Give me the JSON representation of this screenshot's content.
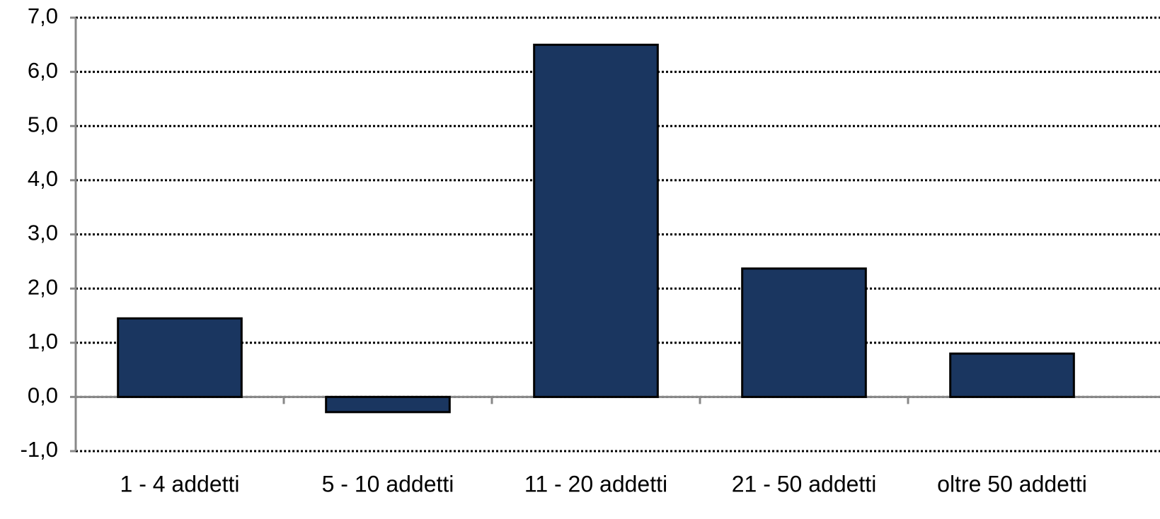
{
  "chart_data": {
    "type": "bar",
    "categories": [
      "1 - 4 addetti",
      "5 - 10 addetti",
      "11 - 20 addetti",
      "21 - 50 addetti",
      "oltre 50 addetti"
    ],
    "values": [
      1.45,
      -0.28,
      6.5,
      2.37,
      0.8
    ],
    "color": "#1a3660",
    "ylim": [
      -1,
      7
    ],
    "yticks": [
      {
        "value": -1,
        "label": "-1,0"
      },
      {
        "value": 0,
        "label": "0,0"
      },
      {
        "value": 1,
        "label": "1,0"
      },
      {
        "value": 2,
        "label": "2,0"
      },
      {
        "value": 3,
        "label": "3,0"
      },
      {
        "value": 4,
        "label": "4,0"
      },
      {
        "value": 5,
        "label": "5,0"
      },
      {
        "value": 6,
        "label": "6,0"
      },
      {
        "value": 7,
        "label": "7,0"
      }
    ],
    "grid": true
  }
}
